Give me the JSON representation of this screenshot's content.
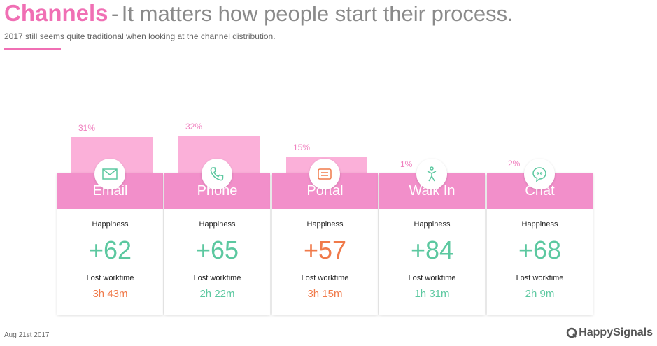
{
  "header": {
    "title": "Channels",
    "dash": "-",
    "title_rest": "It matters how people start their process.",
    "subtitle": "2017 still seems quite  traditional when looking at the channel distribution."
  },
  "colors": {
    "accent": "#f06fb4",
    "bar": "#fbb0d9",
    "card_header": "#f28fca",
    "positive": "#5cc8a0",
    "negative": "#f07a4a"
  },
  "chart_data": {
    "type": "bar",
    "categories": [
      "Email",
      "Phone",
      "Portal",
      "Walk In",
      "Chat"
    ],
    "values": [
      31,
      32,
      15,
      1,
      2
    ],
    "value_labels": [
      "31%",
      "32%",
      "15%",
      "1%",
      "2%"
    ],
    "ylim": [
      0,
      35
    ],
    "icons": [
      "envelope-icon",
      "phone-icon",
      "form-icon",
      "person-icon",
      "chat-bubble-icon"
    ],
    "happiness_label": "Happiness",
    "happiness": [
      "+62",
      "+65",
      "+57",
      "+84",
      "+68"
    ],
    "happiness_tone": [
      "positive",
      "positive",
      "negative",
      "positive",
      "positive"
    ],
    "lost_label": "Lost worktime",
    "lost_worktime": [
      "3h 43m",
      "2h 22m",
      "3h 15m",
      "1h 31m",
      "2h 9m"
    ],
    "lost_tone": [
      "negative",
      "positive",
      "negative",
      "positive",
      "positive"
    ]
  },
  "footer": {
    "date": "Aug 21st 2017",
    "brand": "HappySignals"
  }
}
